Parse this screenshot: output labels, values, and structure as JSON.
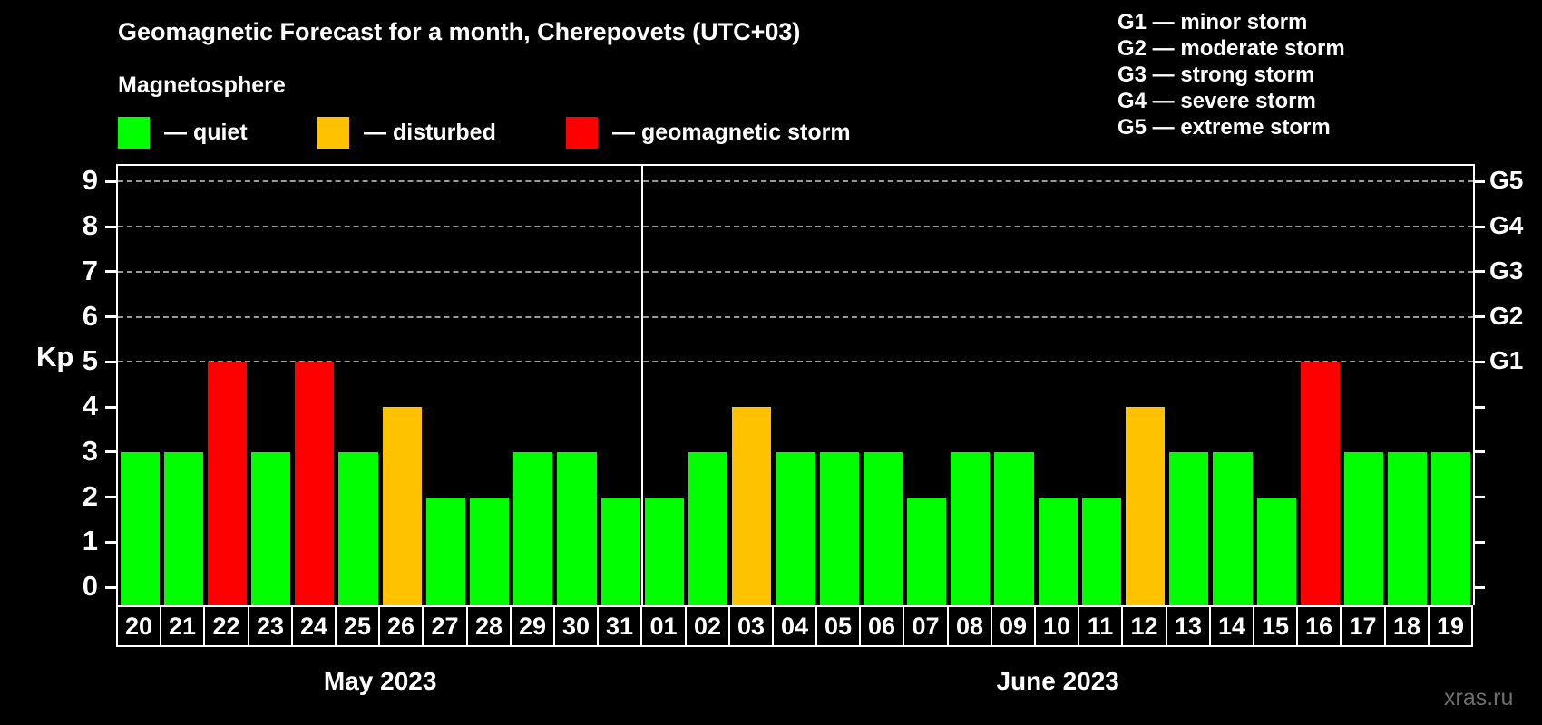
{
  "header": {
    "title": "Geomagnetic Forecast for a month, Cherepovets (UTC+03)",
    "subtitle": "Magnetosphere"
  },
  "legend": {
    "items": [
      {
        "key": "quiet",
        "label": "— quiet",
        "color": "#00ff00"
      },
      {
        "key": "disturbed",
        "label": "— disturbed",
        "color": "#ffc200"
      },
      {
        "key": "storm",
        "label": "— geomagnetic storm",
        "color": "#ff0000"
      }
    ]
  },
  "storm_scale": {
    "items": [
      "G1 — minor storm",
      "G2 — moderate storm",
      "G3 — strong storm",
      "G4 — severe storm",
      "G5 — extreme storm"
    ]
  },
  "watermark": "xras.ru",
  "chart_data": {
    "type": "bar",
    "ylabel": "Kp",
    "ylim": [
      -0.4,
      9.35
    ],
    "y_ticks": [
      0,
      1,
      2,
      3,
      4,
      5,
      6,
      7,
      8,
      9
    ],
    "gridlines_at": [
      5,
      6,
      7,
      8,
      9
    ],
    "grid": "dashed horizontal at storm levels only",
    "legend_position": "top",
    "right_axis_labels": [
      {
        "kp": 5,
        "label": "G1"
      },
      {
        "kp": 6,
        "label": "G2"
      },
      {
        "kp": 7,
        "label": "G3"
      },
      {
        "kp": 8,
        "label": "G4"
      },
      {
        "kp": 9,
        "label": "G5"
      }
    ],
    "status_colors": {
      "quiet": "#00ff00",
      "disturbed": "#ffc200",
      "storm": "#ff0000"
    },
    "months": [
      {
        "label": "May 2023",
        "days": [
          {
            "date": "20",
            "kp": 3,
            "status": "quiet"
          },
          {
            "date": "21",
            "kp": 3,
            "status": "quiet"
          },
          {
            "date": "22",
            "kp": 5,
            "status": "storm"
          },
          {
            "date": "23",
            "kp": 3,
            "status": "quiet"
          },
          {
            "date": "24",
            "kp": 5,
            "status": "storm"
          },
          {
            "date": "25",
            "kp": 3,
            "status": "quiet"
          },
          {
            "date": "26",
            "kp": 4,
            "status": "disturbed"
          },
          {
            "date": "27",
            "kp": 2,
            "status": "quiet"
          },
          {
            "date": "28",
            "kp": 2,
            "status": "quiet"
          },
          {
            "date": "29",
            "kp": 3,
            "status": "quiet"
          },
          {
            "date": "30",
            "kp": 3,
            "status": "quiet"
          },
          {
            "date": "31",
            "kp": 2,
            "status": "quiet"
          }
        ]
      },
      {
        "label": "June 2023",
        "days": [
          {
            "date": "01",
            "kp": 2,
            "status": "quiet"
          },
          {
            "date": "02",
            "kp": 3,
            "status": "quiet"
          },
          {
            "date": "03",
            "kp": 4,
            "status": "disturbed"
          },
          {
            "date": "04",
            "kp": 3,
            "status": "quiet"
          },
          {
            "date": "05",
            "kp": 3,
            "status": "quiet"
          },
          {
            "date": "06",
            "kp": 3,
            "status": "quiet"
          },
          {
            "date": "07",
            "kp": 2,
            "status": "quiet"
          },
          {
            "date": "08",
            "kp": 3,
            "status": "quiet"
          },
          {
            "date": "09",
            "kp": 3,
            "status": "quiet"
          },
          {
            "date": "10",
            "kp": 2,
            "status": "quiet"
          },
          {
            "date": "11",
            "kp": 2,
            "status": "quiet"
          },
          {
            "date": "12",
            "kp": 4,
            "status": "disturbed"
          },
          {
            "date": "13",
            "kp": 3,
            "status": "quiet"
          },
          {
            "date": "14",
            "kp": 3,
            "status": "quiet"
          },
          {
            "date": "15",
            "kp": 2,
            "status": "quiet"
          },
          {
            "date": "16",
            "kp": 5,
            "status": "storm"
          },
          {
            "date": "17",
            "kp": 3,
            "status": "quiet"
          },
          {
            "date": "18",
            "kp": 3,
            "status": "quiet"
          },
          {
            "date": "19",
            "kp": 3,
            "status": "quiet"
          }
        ]
      }
    ]
  }
}
